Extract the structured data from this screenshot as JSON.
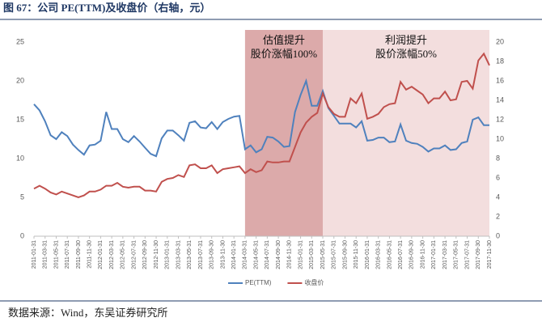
{
  "chart_data": {
    "type": "line",
    "title": "图 67：公司 PE(TTM)及收盘价（右轴，元）",
    "source": "数据来源：Wind，东吴证券研究所",
    "categories": [
      "2011-01-31",
      null,
      "2011-03-31",
      null,
      "2011-05-31",
      null,
      "2011-07-31",
      null,
      "2011-09-30",
      null,
      "2011-11-30",
      null,
      "2012-01-31",
      null,
      "2012-03-31",
      null,
      "2012-05-31",
      null,
      "2012-07-31",
      null,
      "2012-09-30",
      null,
      "2012-11-30",
      null,
      "2013-01-31",
      null,
      "2013-03-31",
      null,
      "2013-05-31",
      null,
      "2013-07-31",
      null,
      "2013-09-30",
      null,
      "2013-11-30",
      null,
      "2014-01-31",
      null,
      "2014-03-31",
      null,
      "2014-05-31",
      null,
      "2014-07-31",
      null,
      "2014-09-30",
      null,
      "2014-11-30",
      null,
      "2015-01-31",
      null,
      "2015-03-31",
      null,
      "2015-05-31",
      null,
      "2015-07-31",
      null,
      "2015-09-30",
      null,
      "2015-11-30",
      null,
      "2016-01-31",
      null,
      "2016-03-31",
      null,
      "2016-05-31",
      null,
      "2016-07-31",
      null,
      "2016-09-30",
      null,
      "2016-11-30",
      null,
      "2017-01-31",
      null,
      "2017-03-31",
      null,
      "2017-05-31",
      null,
      "2017-07-31",
      null,
      "2017-09-30",
      null,
      "2017-11-30"
    ],
    "series": [
      {
        "name": "PE(TTM)",
        "color": "#4f81bd",
        "values": [
          17,
          16.2,
          14.8,
          13,
          12.5,
          13.4,
          12.9,
          11.8,
          11.1,
          10.5,
          11.7,
          11.8,
          12.3,
          16,
          13.8,
          13.8,
          12.5,
          12.1,
          12.9,
          12.2,
          11.4,
          10.6,
          10.3,
          12.6,
          13.6,
          13.6,
          13,
          12.3,
          14.6,
          14.8,
          14,
          13.9,
          14.7,
          13.8,
          14.7,
          15.1,
          15.4,
          15.5,
          11.2,
          11.7,
          10.8,
          11.2,
          12.8,
          12.7,
          12.2,
          11.5,
          11.6,
          16,
          18.2,
          20,
          16.8,
          16.8,
          18.7,
          16.5,
          15.5,
          14.5,
          14.5,
          14.5,
          14,
          14.8,
          12.3,
          12.4,
          12.7,
          12.7,
          12.1,
          12.2,
          14.4,
          12.3,
          12,
          11.9,
          11.5,
          10.9,
          11.3,
          11.3,
          11.7,
          11.1,
          11.2,
          12,
          12.2,
          15,
          15.3,
          14.3,
          14.3
        ]
      },
      {
        "name": "收盘价",
        "color": "#c0504d",
        "axis": "y2",
        "values": [
          4.9,
          5.2,
          4.9,
          4.5,
          4.3,
          4.6,
          4.4,
          4.2,
          4,
          4.2,
          4.6,
          4.6,
          4.8,
          5.2,
          5.2,
          5.5,
          5.1,
          5,
          5.1,
          5.1,
          4.7,
          4.7,
          4.6,
          5.6,
          5.9,
          6,
          6.3,
          6.1,
          7.3,
          7.4,
          7,
          7,
          7.3,
          6.5,
          6.9,
          7,
          7.1,
          7.2,
          6.5,
          6.9,
          6.6,
          6.8,
          7.7,
          7.6,
          7.6,
          7.7,
          7.7,
          9.2,
          10.7,
          11.7,
          12.3,
          12.7,
          14.7,
          13.3,
          12.6,
          12.3,
          12.3,
          14.2,
          13.7,
          14.7,
          12.1,
          12.3,
          12.6,
          13.3,
          13.6,
          13.7,
          15.9,
          15.1,
          15.4,
          15,
          14.6,
          13.7,
          14.2,
          14.2,
          14.9,
          14,
          14.1,
          15.9,
          16,
          15.2,
          18.1,
          18.8,
          17.6
        ]
      }
    ],
    "ylim": [
      0,
      25
    ],
    "yticks": [
      0,
      5,
      10,
      15,
      20,
      25
    ],
    "y2lim": [
      0,
      20
    ],
    "y2ticks": [
      0,
      2,
      4,
      6,
      8,
      10,
      12,
      14,
      16,
      18,
      20
    ],
    "annotations": [
      {
        "lines": [
          "估值提升",
          "股价涨幅100%"
        ],
        "from": "2014-03-31",
        "to": "2015-05-31",
        "color": "#dcaaaa"
      },
      {
        "lines": [
          "利润提升",
          "股价涨幅50%"
        ],
        "from": "2015-05-31",
        "to": "2017-11-30",
        "color": "#f3dede"
      }
    ],
    "legend": "bottom"
  }
}
